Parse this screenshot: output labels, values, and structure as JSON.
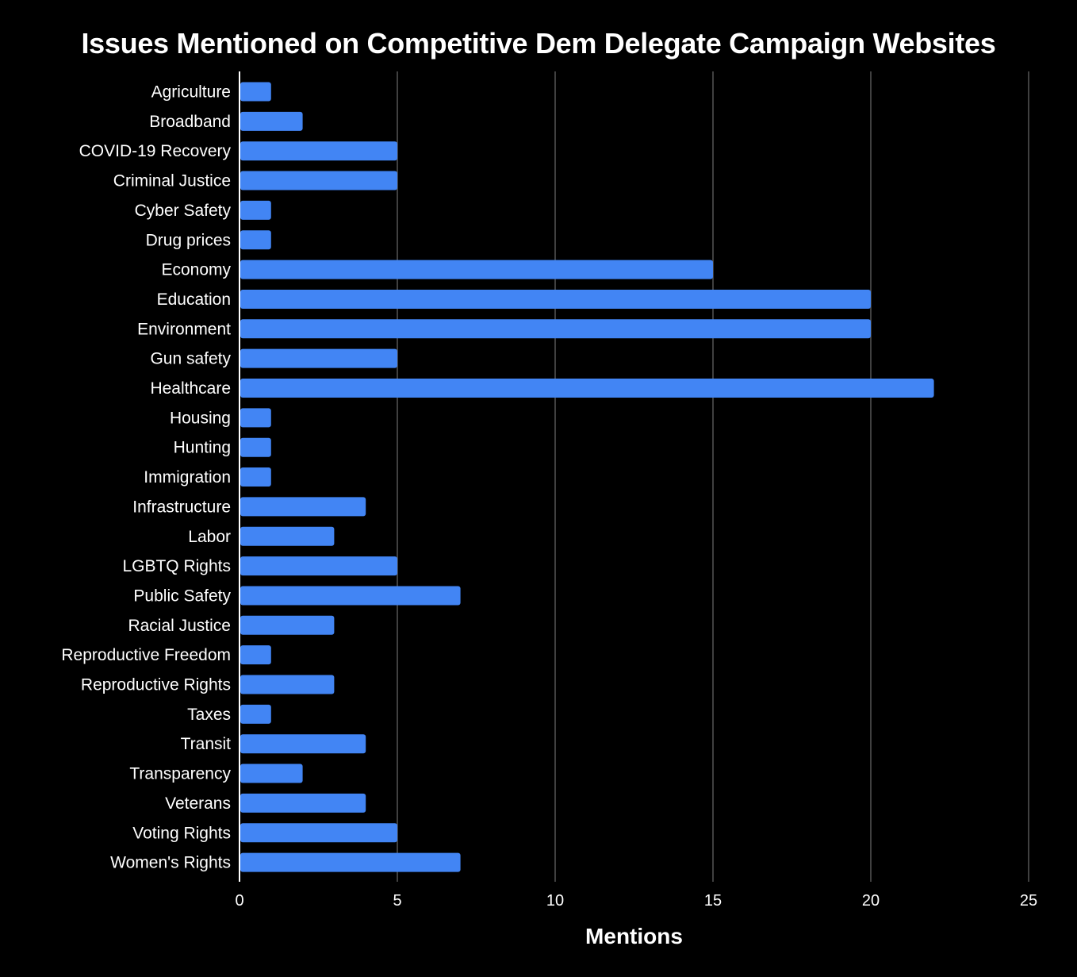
{
  "chart_data": {
    "type": "bar",
    "orientation": "horizontal",
    "title": "Issues Mentioned on Competitive Dem Delegate Campaign Websites",
    "xlabel": "Mentions",
    "ylabel": "",
    "xlim": [
      0,
      25
    ],
    "xticks": [
      0,
      5,
      10,
      15,
      20,
      25
    ],
    "grid": true,
    "legend": "none",
    "categories": [
      "Agriculture",
      "Broadband",
      "COVID-19 Recovery",
      "Criminal Justice",
      "Cyber Safety",
      "Drug prices",
      "Economy",
      "Education",
      "Environment",
      "Gun safety",
      "Healthcare",
      "Housing",
      "Hunting",
      "Immigration",
      "Infrastructure",
      "Labor",
      "LGBTQ Rights",
      "Public Safety",
      "Racial Justice",
      "Reproductive Freedom",
      "Reproductive Rights",
      "Taxes",
      "Transit",
      "Transparency",
      "Veterans",
      "Voting Rights",
      "Women's Rights"
    ],
    "values": [
      1,
      2,
      5,
      5,
      1,
      1,
      15,
      20,
      20,
      5,
      22,
      1,
      1,
      1,
      4,
      3,
      5,
      7,
      3,
      1,
      3,
      1,
      4,
      2,
      4,
      5,
      7
    ],
    "colors": {
      "bar": "#4285f4",
      "background": "#000000",
      "text": "#ffffff",
      "grid": "#555555",
      "axis": "#ffffff"
    }
  }
}
